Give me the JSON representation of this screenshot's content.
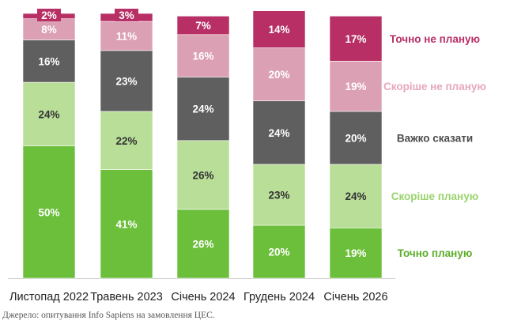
{
  "chart_data": {
    "type": "bar",
    "stacked": true,
    "title": "",
    "xlabel": "",
    "ylabel": "",
    "ylim": [
      0,
      100
    ],
    "categories": [
      "Листопад 2022",
      "Травень 2023",
      "Січень 2024",
      "Грудень 2024",
      "Січень 2026"
    ],
    "series": [
      {
        "name": "Точно планую",
        "color": "#6cbf3b",
        "label_color": "#ffffff",
        "values": [
          50,
          41,
          26,
          20,
          19
        ]
      },
      {
        "name": "Скоріше планую",
        "color": "#b8de98",
        "label_color": "#333333",
        "values": [
          24,
          22,
          26,
          23,
          24
        ]
      },
      {
        "name": "Важко сказати",
        "color": "#5f5f5f",
        "label_color": "#ffffff",
        "values": [
          16,
          23,
          24,
          24,
          20
        ]
      },
      {
        "name": "Скоріше не планую",
        "color": "#dca0b4",
        "label_color": "#ffffff",
        "values": [
          8,
          11,
          16,
          20,
          19
        ]
      },
      {
        "name": "Точно не планую",
        "color": "#b72f64",
        "label_color": "#ffffff",
        "values": [
          2,
          3,
          7,
          14,
          17
        ]
      }
    ],
    "legend_position": "right",
    "legend_colors": {
      "Точно не планую": "#b72f64",
      "Скоріше не планую": "#e7a7bb",
      "Важко сказати": "#4a4a4a",
      "Скоріше планую": "#9ad36c",
      "Точно планую": "#5dae2a"
    }
  },
  "source": "Джерело: опитування Info Sapiens на замовлення ЦЕС."
}
